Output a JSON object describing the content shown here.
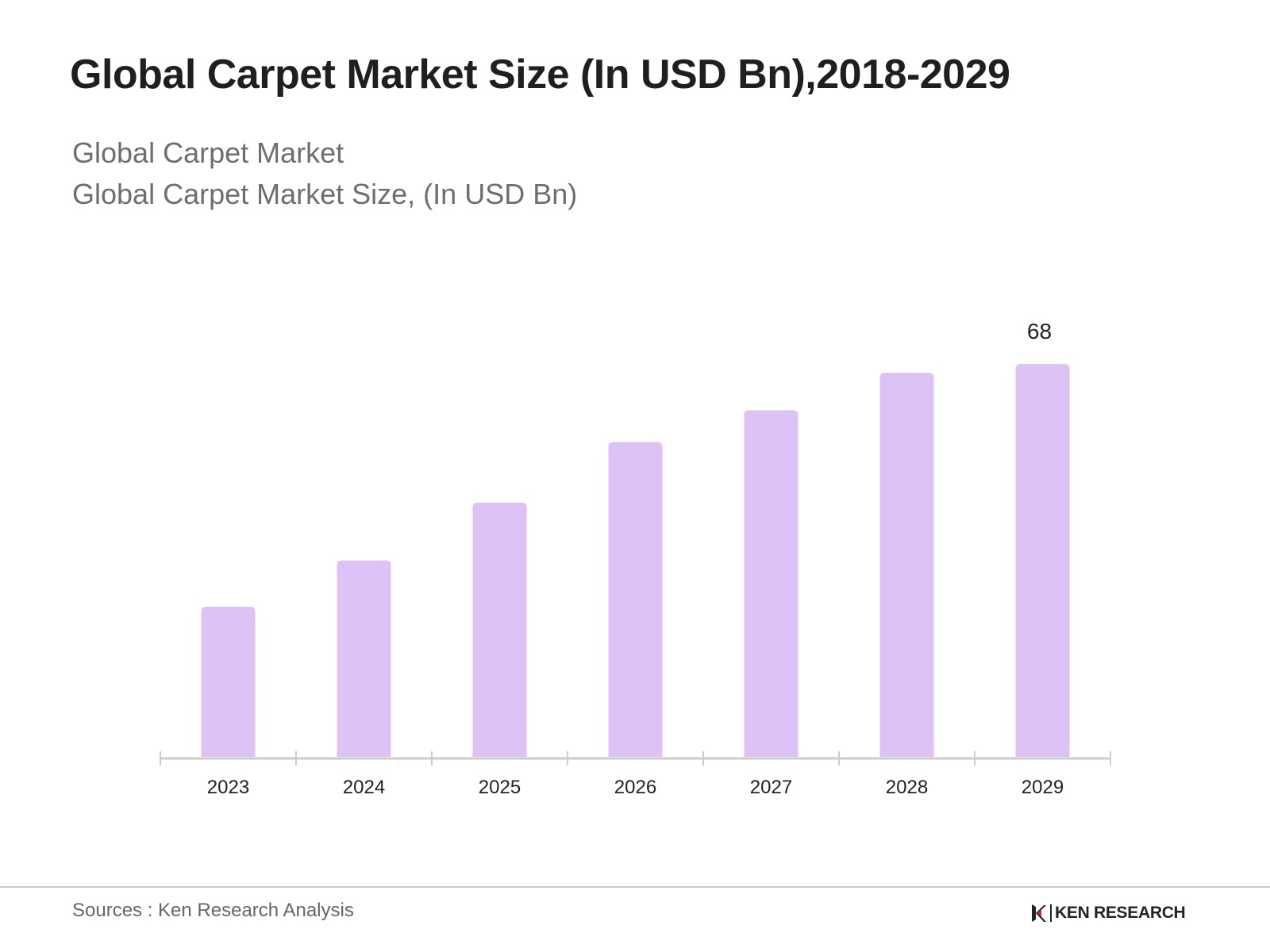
{
  "header": {
    "title": "Global Carpet Market Size (In USD Bn),2018-2029",
    "subtitle_line1": "Global Carpet Market",
    "subtitle_line2": "Global Carpet Market Size, (In USD Bn)"
  },
  "chart_data": {
    "type": "bar",
    "categories": [
      "2023",
      "2024",
      "2025",
      "2026",
      "2027",
      "2028",
      "2029"
    ],
    "values": [
      26,
      34,
      44,
      54.5,
      60,
      66.5,
      68
    ],
    "data_labels": [
      null,
      null,
      null,
      null,
      null,
      null,
      "68"
    ],
    "title": "Global Carpet Market Size (In USD Bn),2018-2029",
    "xlabel": "",
    "ylabel": "",
    "ylim": [
      0,
      80
    ],
    "grid": false,
    "bar_color": "#dcc2f5",
    "axis_color": "#cccccc"
  },
  "footer": {
    "source": "Sources : Ken Research Analysis",
    "brand": "KEN RESEARCH",
    "brand_color": "#222222",
    "brand_accent": "#e2231a"
  }
}
